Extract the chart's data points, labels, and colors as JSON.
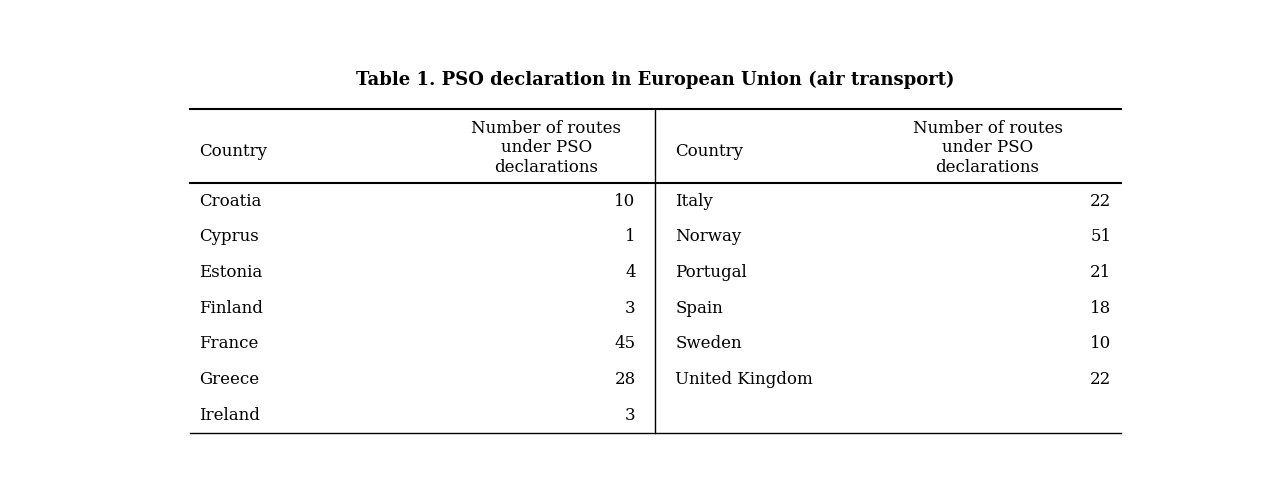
{
  "title": "Table 1. PSO declaration in European Union (air transport)",
  "col_headers_left": [
    "Country",
    "Number of routes\nunder PSO\ndeclarations"
  ],
  "col_headers_right": [
    "Country",
    "Number of routes\nunder PSO\ndeclarations"
  ],
  "left_data": [
    [
      "Croatia",
      "10"
    ],
    [
      "Cyprus",
      "1"
    ],
    [
      "Estonia",
      "4"
    ],
    [
      "Finland",
      "3"
    ],
    [
      "France",
      "45"
    ],
    [
      "Greece",
      "28"
    ],
    [
      "Ireland",
      "3"
    ]
  ],
  "right_data": [
    [
      "Italy",
      "22"
    ],
    [
      "Norway",
      "51"
    ],
    [
      "Portugal",
      "21"
    ],
    [
      "Spain",
      "18"
    ],
    [
      "Sweden",
      "10"
    ],
    [
      "United Kingdom",
      "22"
    ],
    [
      "",
      ""
    ]
  ],
  "background_color": "#ffffff",
  "text_color": "#000000",
  "title_fontsize": 13,
  "header_fontsize": 12,
  "body_fontsize": 12,
  "font_family": "serif"
}
